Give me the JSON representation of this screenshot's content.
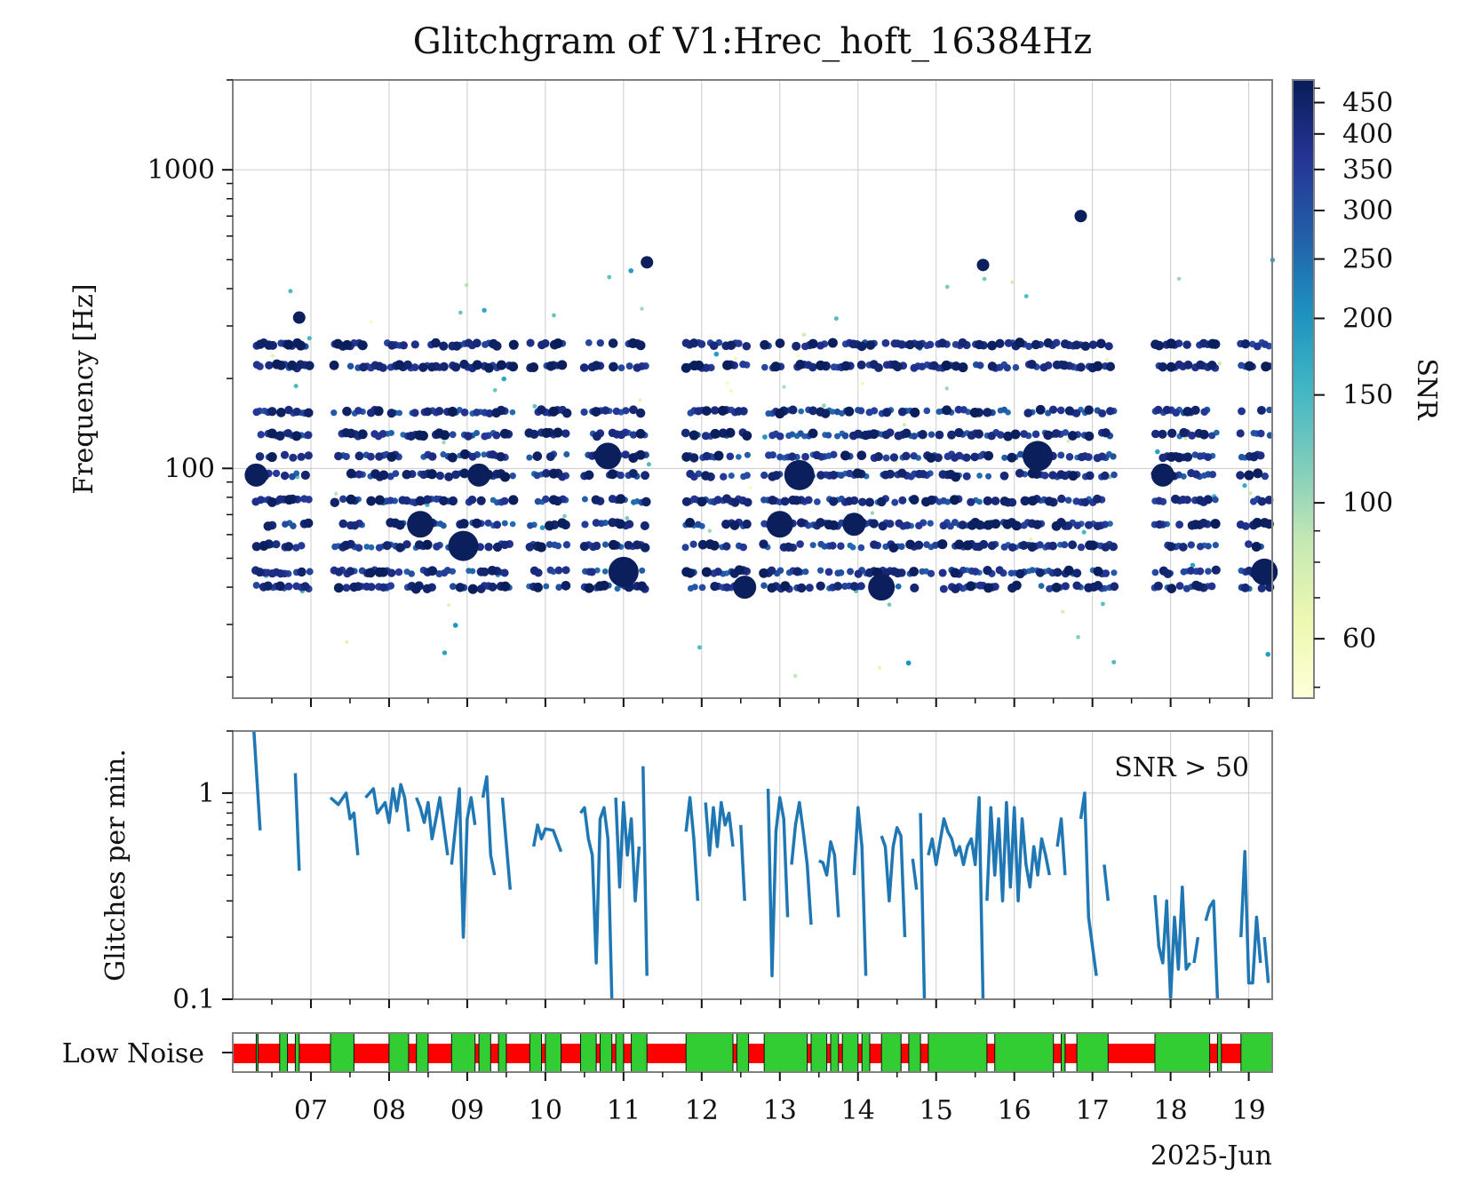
{
  "chart_data": [
    {
      "panel": "scatter",
      "type": "scatter",
      "title": "Glitchgram of V1:Hrec_hoft_16384Hz",
      "ylabel": "Frequency [Hz]",
      "yscale": "log",
      "ylim": [
        17,
        2000
      ],
      "xlim": [
        6.0,
        19.3
      ],
      "yticks": [
        {
          "v": 100,
          "label": "100"
        },
        {
          "v": 1000,
          "label": "1000"
        }
      ],
      "grid": true,
      "note": "thousands of points; representative sample of estimated bands",
      "bands_hz": [
        40,
        45,
        55,
        65,
        78,
        95,
        110,
        130,
        155,
        220,
        260
      ],
      "active_days": [
        [
          6.3,
          7.0
        ],
        [
          7.3,
          9.6
        ],
        [
          9.8,
          10.3
        ],
        [
          10.5,
          11.3
        ],
        [
          11.8,
          12.6
        ],
        [
          12.8,
          17.3
        ],
        [
          17.8,
          18.6
        ],
        [
          18.9,
          19.3
        ]
      ],
      "large_points": [
        {
          "x": 6.3,
          "y": 95,
          "snr": 480
        },
        {
          "x": 8.4,
          "y": 65,
          "snr": 480
        },
        {
          "x": 8.95,
          "y": 55,
          "snr": 480
        },
        {
          "x": 9.15,
          "y": 95,
          "snr": 480
        },
        {
          "x": 10.8,
          "y": 110,
          "snr": 480
        },
        {
          "x": 11.0,
          "y": 45,
          "snr": 480
        },
        {
          "x": 12.55,
          "y": 40,
          "snr": 480
        },
        {
          "x": 13.0,
          "y": 65,
          "snr": 480
        },
        {
          "x": 13.25,
          "y": 95,
          "snr": 480
        },
        {
          "x": 13.95,
          "y": 65,
          "snr": 480
        },
        {
          "x": 14.3,
          "y": 40,
          "snr": 480
        },
        {
          "x": 16.3,
          "y": 110,
          "snr": 480
        },
        {
          "x": 17.9,
          "y": 95,
          "snr": 480
        },
        {
          "x": 19.2,
          "y": 45,
          "snr": 480
        },
        {
          "x": 16.85,
          "y": 700,
          "snr": 480
        },
        {
          "x": 6.85,
          "y": 320,
          "snr": 480
        },
        {
          "x": 15.6,
          "y": 480,
          "snr": 480
        },
        {
          "x": 11.3,
          "y": 490,
          "snr": 480
        }
      ]
    },
    {
      "panel": "rate",
      "type": "line",
      "ylabel": "Glitches per min.",
      "yscale": "log",
      "ylim": [
        0.1,
        2.0
      ],
      "yticks": [
        {
          "v": 1,
          "label": "1"
        },
        {
          "v": 0.1,
          "label": "0.1"
        }
      ],
      "annotation": "SNR > 50",
      "segments": [
        [
          [
            6.27,
            2.0
          ],
          [
            6.35,
            0.66
          ]
        ],
        [
          [
            6.8,
            1.25
          ],
          [
            6.85,
            0.42
          ]
        ],
        [
          [
            7.25,
            0.95
          ],
          [
            7.35,
            0.88
          ],
          [
            7.45,
            1.0
          ],
          [
            7.5,
            0.75
          ],
          [
            7.55,
            0.8
          ],
          [
            7.6,
            0.5
          ]
        ],
        [
          [
            7.7,
            0.95
          ],
          [
            7.8,
            1.05
          ],
          [
            7.85,
            0.8
          ],
          [
            7.95,
            0.9
          ],
          [
            8.0,
            0.72
          ],
          [
            8.05,
            1.05
          ],
          [
            8.1,
            0.82
          ],
          [
            8.15,
            1.1
          ],
          [
            8.2,
            0.95
          ],
          [
            8.25,
            0.65
          ]
        ],
        [
          [
            8.35,
            0.95
          ],
          [
            8.4,
            0.85
          ],
          [
            8.45,
            0.72
          ],
          [
            8.5,
            0.9
          ],
          [
            8.55,
            0.6
          ],
          [
            8.6,
            0.75
          ],
          [
            8.65,
            0.95
          ],
          [
            8.75,
            0.5
          ]
        ],
        [
          [
            8.8,
            0.45
          ],
          [
            8.9,
            1.05
          ],
          [
            8.95,
            0.2
          ],
          [
            9.0,
            0.75
          ],
          [
            9.05,
            0.95
          ],
          [
            9.1,
            0.7
          ]
        ],
        [
          [
            9.2,
            0.95
          ],
          [
            9.25,
            1.2
          ],
          [
            9.3,
            0.5
          ],
          [
            9.35,
            0.4
          ]
        ],
        [
          [
            9.45,
            0.95
          ],
          [
            9.55,
            0.34
          ]
        ],
        [
          [
            9.85,
            0.55
          ],
          [
            9.9,
            0.7
          ],
          [
            9.95,
            0.6
          ],
          [
            10.0,
            0.67
          ],
          [
            10.1,
            0.66
          ],
          [
            10.2,
            0.52
          ]
        ],
        [
          [
            10.45,
            0.8
          ],
          [
            10.5,
            0.85
          ],
          [
            10.55,
            0.6
          ],
          [
            10.6,
            0.5
          ],
          [
            10.65,
            0.15
          ],
          [
            10.7,
            0.75
          ],
          [
            10.75,
            0.85
          ],
          [
            10.8,
            0.6
          ],
          [
            10.85,
            0.1
          ]
        ],
        [
          [
            10.9,
            0.95
          ],
          [
            10.95,
            0.35
          ],
          [
            11.0,
            0.9
          ],
          [
            11.05,
            0.5
          ],
          [
            11.1,
            0.75
          ],
          [
            11.15,
            0.3
          ],
          [
            11.2,
            0.55
          ]
        ],
        [
          [
            11.25,
            1.35
          ],
          [
            11.3,
            0.13
          ]
        ],
        [
          [
            11.8,
            0.65
          ],
          [
            11.85,
            0.95
          ],
          [
            11.9,
            0.6
          ],
          [
            11.95,
            0.3
          ]
        ],
        [
          [
            12.05,
            0.9
          ],
          [
            12.1,
            0.5
          ],
          [
            12.15,
            0.85
          ],
          [
            12.2,
            0.55
          ],
          [
            12.25,
            0.9
          ],
          [
            12.3,
            0.7
          ],
          [
            12.35,
            0.8
          ],
          [
            12.4,
            0.55
          ]
        ],
        [
          [
            12.5,
            0.7
          ],
          [
            12.55,
            0.3
          ]
        ],
        [
          [
            12.85,
            1.05
          ],
          [
            12.9,
            0.13
          ],
          [
            12.95,
            0.65
          ],
          [
            13.0,
            0.95
          ],
          [
            13.05,
            0.75
          ],
          [
            13.1,
            0.25
          ]
        ],
        [
          [
            13.15,
            0.45
          ],
          [
            13.2,
            0.7
          ],
          [
            13.25,
            0.9
          ],
          [
            13.3,
            0.65
          ],
          [
            13.35,
            0.45
          ],
          [
            13.4,
            0.23
          ]
        ],
        [
          [
            13.5,
            0.47
          ],
          [
            13.55,
            0.46
          ],
          [
            13.6,
            0.4
          ],
          [
            13.65,
            0.58
          ],
          [
            13.7,
            0.5
          ],
          [
            13.75,
            0.25
          ]
        ],
        [
          [
            13.95,
            0.4
          ],
          [
            14.0,
            0.85
          ],
          [
            14.05,
            0.55
          ],
          [
            14.1,
            0.13
          ]
        ],
        [
          [
            14.3,
            0.62
          ],
          [
            14.35,
            0.55
          ],
          [
            14.4,
            0.3
          ],
          [
            14.45,
            0.55
          ],
          [
            14.5,
            0.68
          ],
          [
            14.55,
            0.62
          ],
          [
            14.6,
            0.2
          ]
        ],
        [
          [
            14.7,
            0.48
          ],
          [
            14.75,
            0.34
          ]
        ],
        [
          [
            14.8,
            0.8
          ],
          [
            14.85,
            0.1
          ]
        ],
        [
          [
            14.9,
            0.5
          ],
          [
            14.95,
            0.6
          ],
          [
            15.0,
            0.45
          ],
          [
            15.05,
            0.58
          ],
          [
            15.1,
            0.75
          ],
          [
            15.15,
            0.65
          ],
          [
            15.2,
            0.6
          ],
          [
            15.25,
            0.5
          ],
          [
            15.3,
            0.55
          ],
          [
            15.35,
            0.45
          ],
          [
            15.4,
            0.55
          ],
          [
            15.45,
            0.6
          ],
          [
            15.5,
            0.45
          ],
          [
            15.55,
            0.95
          ],
          [
            15.6,
            0.1
          ]
        ],
        [
          [
            15.65,
            0.3
          ],
          [
            15.7,
            0.85
          ],
          [
            15.75,
            0.4
          ],
          [
            15.8,
            0.75
          ],
          [
            15.85,
            0.3
          ],
          [
            15.9,
            0.9
          ],
          [
            15.95,
            0.35
          ],
          [
            16.0,
            0.85
          ],
          [
            16.05,
            0.3
          ],
          [
            16.1,
            0.75
          ],
          [
            16.15,
            0.45
          ],
          [
            16.2,
            0.35
          ],
          [
            16.25,
            0.55
          ],
          [
            16.3,
            0.4
          ],
          [
            16.35,
            0.6
          ],
          [
            16.4,
            0.5
          ],
          [
            16.45,
            0.4
          ]
        ],
        [
          [
            16.55,
            0.55
          ],
          [
            16.6,
            0.75
          ],
          [
            16.65,
            0.4
          ]
        ],
        [
          [
            16.85,
            0.75
          ],
          [
            16.9,
            1.0
          ],
          [
            16.95,
            0.25
          ],
          [
            17.05,
            0.13
          ]
        ],
        [
          [
            17.15,
            0.45
          ],
          [
            17.2,
            0.3
          ]
        ],
        [
          [
            17.8,
            0.32
          ],
          [
            17.85,
            0.18
          ],
          [
            17.9,
            0.15
          ],
          [
            17.95,
            0.3
          ],
          [
            18.0,
            0.1
          ],
          [
            18.05,
            0.25
          ],
          [
            18.1,
            0.14
          ],
          [
            18.15,
            0.35
          ],
          [
            18.2,
            0.14
          ],
          [
            18.25,
            0.15
          ]
        ],
        [
          [
            18.3,
            0.15
          ],
          [
            18.35,
            0.2
          ]
        ],
        [
          [
            18.45,
            0.24
          ],
          [
            18.5,
            0.28
          ],
          [
            18.55,
            0.3
          ],
          [
            18.6,
            0.1
          ]
        ],
        [
          [
            18.9,
            0.2
          ],
          [
            18.95,
            0.52
          ],
          [
            19.0,
            0.12
          ],
          [
            19.05,
            0.12
          ],
          [
            19.1,
            0.25
          ],
          [
            19.15,
            0.15
          ]
        ],
        [
          [
            19.2,
            0.2
          ],
          [
            19.25,
            0.12
          ]
        ]
      ]
    },
    {
      "panel": "state",
      "type": "bar",
      "ylabel": "Low Noise",
      "on_color": "#32cd32",
      "off_color": "#ff0000",
      "on_segments": [
        [
          6.3,
          6.32
        ],
        [
          6.6,
          6.7
        ],
        [
          6.8,
          6.85
        ],
        [
          7.25,
          7.55
        ],
        [
          8.0,
          8.25
        ],
        [
          8.35,
          8.5
        ],
        [
          8.8,
          9.1
        ],
        [
          9.15,
          9.3
        ],
        [
          9.4,
          9.5
        ],
        [
          9.8,
          9.95
        ],
        [
          10.0,
          10.2
        ],
        [
          10.45,
          10.65
        ],
        [
          10.7,
          10.85
        ],
        [
          10.9,
          11.0
        ],
        [
          11.1,
          11.3
        ],
        [
          11.8,
          12.4
        ],
        [
          12.45,
          12.6
        ],
        [
          12.8,
          13.35
        ],
        [
          13.4,
          13.6
        ],
        [
          13.65,
          13.75
        ],
        [
          13.8,
          14.0
        ],
        [
          14.05,
          14.15
        ],
        [
          14.3,
          14.55
        ],
        [
          14.65,
          14.8
        ],
        [
          14.9,
          15.65
        ],
        [
          15.75,
          16.5
        ],
        [
          16.6,
          16.65
        ],
        [
          16.8,
          17.2
        ],
        [
          17.8,
          18.5
        ],
        [
          18.6,
          18.65
        ],
        [
          18.9,
          19.3
        ]
      ]
    }
  ],
  "colorbar": {
    "label": "SNR",
    "min": 48,
    "max": 490,
    "ticks": [
      {
        "v": 60,
        "label": "60"
      },
      {
        "v": 100,
        "label": "100"
      },
      {
        "v": 150,
        "label": "150"
      },
      {
        "v": 200,
        "label": "200"
      },
      {
        "v": 250,
        "label": "250"
      },
      {
        "v": 300,
        "label": "300"
      },
      {
        "v": 350,
        "label": "350"
      },
      {
        "v": 400,
        "label": "400"
      },
      {
        "v": 450,
        "label": "450"
      }
    ],
    "colormap": [
      "#ffffd9",
      "#edf8b1",
      "#c7e9b4",
      "#7fcdbb",
      "#41b6c4",
      "#1d91c0",
      "#225ea8",
      "#253494",
      "#081d58"
    ]
  },
  "xaxis": {
    "ticks": [
      {
        "v": 7,
        "label": "07"
      },
      {
        "v": 8,
        "label": "08"
      },
      {
        "v": 9,
        "label": "09"
      },
      {
        "v": 10,
        "label": "10"
      },
      {
        "v": 11,
        "label": "11"
      },
      {
        "v": 12,
        "label": "12"
      },
      {
        "v": 13,
        "label": "13"
      },
      {
        "v": 14,
        "label": "14"
      },
      {
        "v": 15,
        "label": "15"
      },
      {
        "v": 16,
        "label": "16"
      },
      {
        "v": 17,
        "label": "17"
      },
      {
        "v": 18,
        "label": "18"
      },
      {
        "v": 19,
        "label": "19"
      }
    ],
    "epoch_label": "2025-Jun"
  },
  "colors": {
    "line": "#1f77b4",
    "axes_edge": "#808080",
    "grid": "#cccccc"
  }
}
